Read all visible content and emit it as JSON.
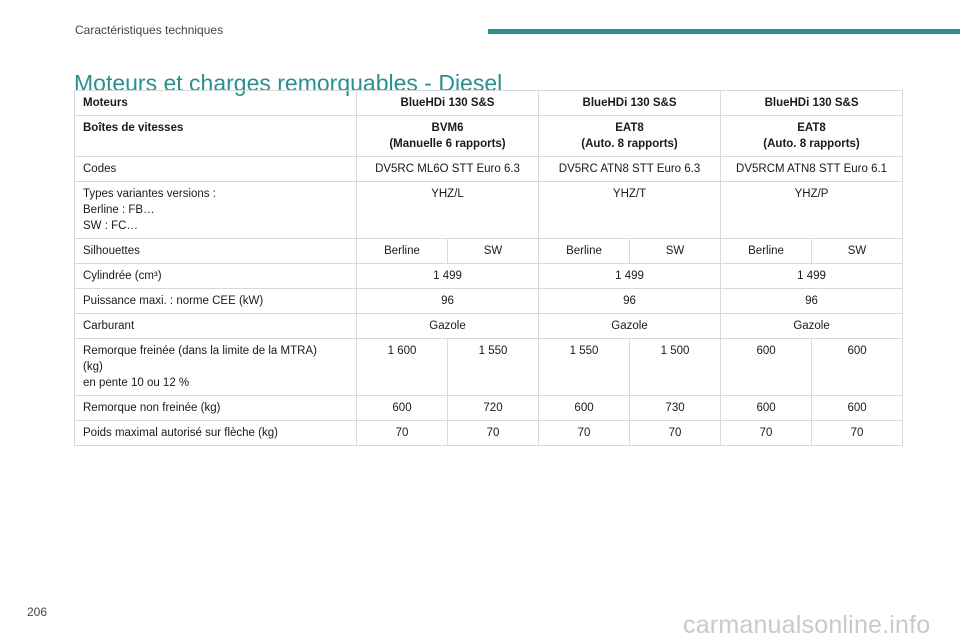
{
  "header": {
    "section": "Caractéristiques techniques",
    "title": "Moteurs et charges remorquables - Diesel",
    "accent_color": "#2a8f8f"
  },
  "table": {
    "engines_label": "Moteurs",
    "engines": [
      "BlueHDi 130 S&S",
      "BlueHDi 130 S&S",
      "BlueHDi 130 S&S"
    ],
    "gearbox_label": "Boîtes de vitesses",
    "gearboxes": [
      {
        "name": "BVM6",
        "detail": "(Manuelle 6 rapports)"
      },
      {
        "name": "EAT8",
        "detail": "(Auto. 8 rapports)"
      },
      {
        "name": "EAT8",
        "detail": "(Auto. 8 rapports)"
      }
    ],
    "codes_label": "Codes",
    "codes": [
      "DV5RC ML6O STT Euro 6.3",
      "DV5RC ATN8 STT Euro 6.3",
      "DV5RCM ATN8 STT Euro 6.1"
    ],
    "variants_label": [
      "Types variantes versions :",
      "Berline : FB…",
      "SW : FC…"
    ],
    "variants": [
      "YHZ/L",
      "YHZ/T",
      "YHZ/P"
    ],
    "silhouettes_label": "Silhouettes",
    "silhouettes": [
      "Berline",
      "SW",
      "Berline",
      "SW",
      "Berline",
      "SW"
    ],
    "displacement_label": "Cylindrée (cm³)",
    "displacement": [
      "1 499",
      "1 499",
      "1 499"
    ],
    "power_label": "Puissance maxi. : norme CEE (kW)",
    "power": [
      "96",
      "96",
      "96"
    ],
    "fuel_label": "Carburant",
    "fuel": [
      "Gazole",
      "Gazole",
      "Gazole"
    ],
    "braked_label": [
      "Remorque freinée (dans la limite de la MTRA)",
      "(kg)",
      "en pente 10 ou 12 %"
    ],
    "braked": [
      "1 600",
      "1 550",
      "1 550",
      "1 500",
      "600",
      "600"
    ],
    "unbraked_label": "Remorque non freinée (kg)",
    "unbraked": [
      "600",
      "720",
      "600",
      "730",
      "600",
      "600"
    ],
    "noseweight_label": "Poids maximal autorisé sur flèche (kg)",
    "noseweight": [
      "70",
      "70",
      "70",
      "70",
      "70",
      "70"
    ]
  },
  "footer": {
    "page_number": "206",
    "watermark": "carmanualsonline.info"
  }
}
